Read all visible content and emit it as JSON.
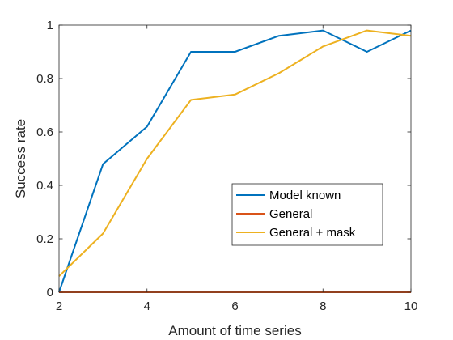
{
  "chart_data": {
    "type": "line",
    "title": "",
    "xlabel": "Amount of time series",
    "ylabel": "Success rate",
    "xlim": [
      2,
      10
    ],
    "ylim": [
      0,
      1
    ],
    "x_ticks": [
      2,
      4,
      6,
      8,
      10
    ],
    "y_ticks": [
      0,
      0.2,
      0.4,
      0.6,
      0.8,
      1
    ],
    "x_tick_labels": [
      "2",
      "4",
      "6",
      "8",
      "10"
    ],
    "y_tick_labels": [
      "0",
      "0.2",
      "0.4",
      "0.6",
      "0.8",
      "1"
    ],
    "grid": false,
    "legend_position": "lower-right",
    "x": [
      2,
      3,
      4,
      5,
      6,
      7,
      8,
      9,
      10
    ],
    "series": [
      {
        "name": "Model known",
        "color": "#0072BD",
        "values": [
          0,
          0.48,
          0.62,
          0.9,
          0.9,
          0.96,
          0.98,
          0.9,
          0.98
        ]
      },
      {
        "name": "General",
        "color": "#D95319",
        "values": [
          0,
          0,
          0,
          0,
          0,
          0,
          0,
          0,
          0
        ]
      },
      {
        "name": "General + mask",
        "color": "#EDB120",
        "values": [
          0.06,
          0.22,
          0.5,
          0.72,
          0.74,
          0.82,
          0.92,
          0.98,
          0.96
        ]
      }
    ]
  }
}
